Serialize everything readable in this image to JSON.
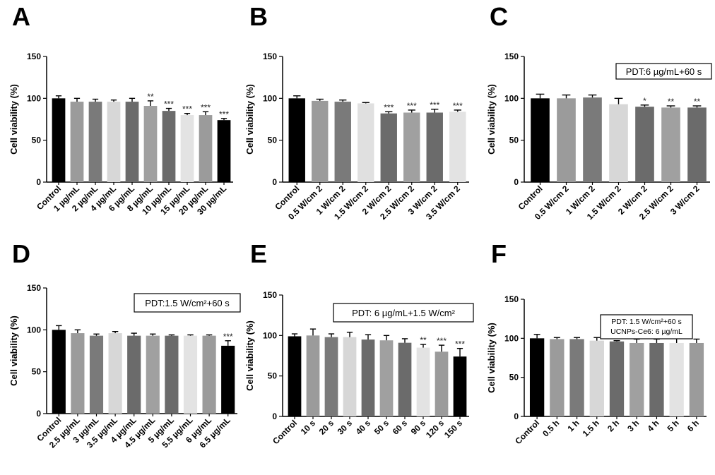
{
  "colors": {
    "axis": "#000000",
    "bar_black": "#000000",
    "bar_mid": "#9b9b9b",
    "bar_dark": "#6b6b6b",
    "bar_light": "#e3e3e3"
  },
  "chart_data": [
    {
      "type": "bar",
      "panel": "A",
      "ylabel": "Cell viability (%)",
      "ylim": [
        0,
        150
      ],
      "yticks": [
        0,
        50,
        100,
        150
      ],
      "categories": [
        "Control",
        "1 µg/mL",
        "2 µg/mL",
        "4 µg/mL",
        "6 µg/mL",
        "8 µg/mL",
        "10 µg/mL",
        "15 µg/mL",
        "20 µg/mL",
        "30 µg/mL"
      ],
      "values": [
        100,
        96,
        96,
        96,
        96,
        91,
        85,
        80,
        80,
        74
      ],
      "errors": [
        3,
        4,
        3,
        2,
        4,
        6,
        3,
        2,
        4,
        2
      ],
      "significance": [
        "",
        "",
        "",
        "",
        "",
        "**",
        "***",
        "***",
        "***",
        "***"
      ],
      "bar_colors": [
        "#000000",
        "#9b9b9b",
        "#7a7a7a",
        "#d7d7d7",
        "#6b6b6b",
        "#a0a0a0",
        "#6b6b6b",
        "#e3e3e3",
        "#9b9b9b",
        "#000000"
      ],
      "annotation": []
    },
    {
      "type": "bar",
      "panel": "B",
      "ylabel": "Cell viability (%)",
      "ylim": [
        0,
        150
      ],
      "yticks": [
        0,
        50,
        100,
        150
      ],
      "categories": [
        "Control",
        "0.5 W/cm 2",
        "1 W/cm 2",
        "1.5 W/cm 2",
        "2 W/cm 2",
        "2.5 W/cm 2",
        "3 W/cm 2",
        "3.5 W/cm 2"
      ],
      "values": [
        100,
        97,
        96,
        94,
        82,
        83,
        83,
        84
      ],
      "errors": [
        3,
        2,
        2,
        1,
        2,
        3,
        4,
        2
      ],
      "significance": [
        "",
        "",
        "",
        "",
        "***",
        "***",
        "***",
        "***"
      ],
      "bar_colors": [
        "#000000",
        "#9b9b9b",
        "#7a7a7a",
        "#e0e0e0",
        "#6b6b6b",
        "#a0a0a0",
        "#6b6b6b",
        "#e3e3e3"
      ],
      "annotation": []
    },
    {
      "type": "bar",
      "panel": "C",
      "ylabel": "Cell viability (%)",
      "ylim": [
        0,
        150
      ],
      "yticks": [
        0,
        50,
        100,
        150
      ],
      "categories": [
        "Control",
        "0.5 W/cm 2",
        "1 W/cm 2",
        "1.5 W/cm 2",
        "2 W/cm 2",
        "2.5 W/cm 2",
        "3 W/cm 2"
      ],
      "values": [
        100,
        100,
        101,
        93,
        90,
        89,
        89
      ],
      "errors": [
        5,
        4,
        3,
        7,
        2,
        2,
        2
      ],
      "significance": [
        "",
        "",
        "",
        "",
        "*",
        "**",
        "**"
      ],
      "bar_colors": [
        "#000000",
        "#9b9b9b",
        "#7a7a7a",
        "#d7d7d7",
        "#6b6b6b",
        "#a0a0a0",
        "#6b6b6b"
      ],
      "annotation": [
        "PDT:6 µg/mL+60 s"
      ]
    },
    {
      "type": "bar",
      "panel": "D",
      "ylabel": "Cell viability (%)",
      "ylim": [
        0,
        150
      ],
      "yticks": [
        0,
        50,
        100,
        150
      ],
      "categories": [
        "Control",
        "2.5 µg/mL",
        "3 µg/mL",
        "3.5 µg/mL",
        "4 µg/mL",
        "4.5 µg/mL",
        "5 µg/mL",
        "5.5 µg/mL",
        "6 µg/mL",
        "6.5 µg/mL"
      ],
      "values": [
        100,
        96,
        93,
        96,
        93,
        93,
        93,
        93,
        93,
        81
      ],
      "errors": [
        5,
        4,
        2,
        2,
        3,
        2,
        1,
        1,
        1,
        6
      ],
      "significance": [
        "",
        "",
        "",
        "",
        "",
        "",
        "",
        "",
        "",
        "***"
      ],
      "bar_colors": [
        "#000000",
        "#9b9b9b",
        "#7a7a7a",
        "#d7d7d7",
        "#6b6b6b",
        "#a0a0a0",
        "#6b6b6b",
        "#e3e3e3",
        "#9b9b9b",
        "#000000"
      ],
      "annotation": [
        "PDT:1.5 W/cm²+60 s"
      ]
    },
    {
      "type": "bar",
      "panel": "E",
      "ylabel": "Cell viability (%)",
      "ylim": [
        0,
        150
      ],
      "yticks": [
        0,
        50,
        100,
        150
      ],
      "categories": [
        "Control",
        "10 s",
        "20 s",
        "30 s",
        "40 s",
        "50 s",
        "60 s",
        "90 s",
        "120 s",
        "150 s"
      ],
      "values": [
        99,
        100,
        98,
        98,
        95,
        94,
        91,
        85,
        80,
        74
      ],
      "errors": [
        3,
        8,
        4,
        6,
        6,
        6,
        5,
        4,
        8,
        10
      ],
      "significance": [
        "",
        "",
        "",
        "",
        "",
        "",
        "",
        "**",
        "***",
        "***"
      ],
      "bar_colors": [
        "#000000",
        "#9b9b9b",
        "#7a7a7a",
        "#d7d7d7",
        "#6b6b6b",
        "#a0a0a0",
        "#6b6b6b",
        "#e3e3e3",
        "#9b9b9b",
        "#000000"
      ],
      "annotation": [
        "PDT: 6 µg/mL+1.5 W/cm²"
      ]
    },
    {
      "type": "bar",
      "panel": "F",
      "ylabel": "Cell viability (%)",
      "ylim": [
        0,
        150
      ],
      "yticks": [
        0,
        50,
        100,
        150
      ],
      "categories": [
        "Control",
        "0.5 h",
        "1 h",
        "1.5 h",
        "2 h",
        "3 h",
        "4 h",
        "5 h",
        "6 h"
      ],
      "values": [
        100,
        99,
        99,
        97,
        96,
        94,
        94,
        94,
        94
      ],
      "errors": [
        5,
        2,
        2,
        4,
        1,
        5,
        5,
        6,
        5
      ],
      "significance": [
        "",
        "",
        "",
        "",
        "",
        "",
        "",
        "",
        ""
      ],
      "bar_colors": [
        "#000000",
        "#9b9b9b",
        "#7a7a7a",
        "#d7d7d7",
        "#6b6b6b",
        "#a0a0a0",
        "#6b6b6b",
        "#e3e3e3",
        "#9b9b9b"
      ],
      "annotation": [
        "PDT: 1.5 W/cm²+60 s",
        "UCNPs-Ce6: 6 µg/mL"
      ]
    }
  ]
}
